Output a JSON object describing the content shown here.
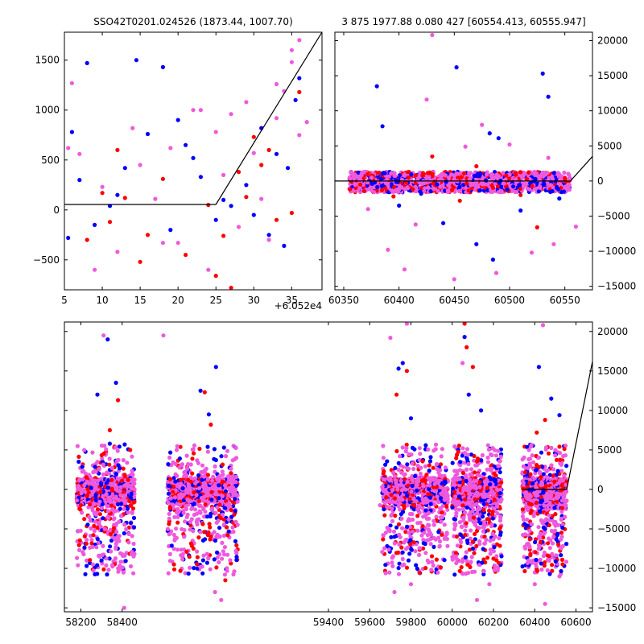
{
  "figure": {
    "title_left": "SSO42T0201.024526 (1873.44, 1007.70)",
    "title_right": "3 875 1977.88 0.080 427 [60554.413, 60555.947]",
    "offset_label": "+6.052e4"
  },
  "colors": {
    "blue": "#0000ff",
    "red": "#ff0000",
    "pink": "#ee5ade",
    "line": "#000000",
    "axes": "#000000"
  },
  "chart_data": [
    {
      "id": "zoom",
      "type": "scatter",
      "xlim": [
        5,
        39
      ],
      "ylim": [
        -800,
        1780
      ],
      "x_offset": 60520,
      "xticks": [
        5,
        10,
        15,
        20,
        25,
        30,
        35
      ],
      "yticks": [
        -500,
        0,
        500,
        1000,
        1500
      ],
      "ytick_labels": [
        "−500",
        "0",
        "500",
        "1000",
        "1500"
      ],
      "series": [
        {
          "color": "blue",
          "points": [
            [
              6,
              780
            ],
            [
              7,
              300
            ],
            [
              9,
              -150
            ],
            [
              11,
              40
            ],
            [
              13,
              420
            ],
            [
              14.5,
              1500
            ],
            [
              16,
              760
            ],
            [
              18,
              1430
            ],
            [
              21,
              650
            ],
            [
              23,
              330
            ],
            [
              25,
              -100
            ],
            [
              27,
              40
            ],
            [
              29,
              250
            ],
            [
              31,
              820
            ],
            [
              33,
              560
            ],
            [
              34,
              -360
            ],
            [
              35.5,
              1100
            ],
            [
              36,
              1320
            ],
            [
              8,
              1470
            ],
            [
              12,
              150
            ],
            [
              19,
              -200
            ],
            [
              22,
              520
            ],
            [
              26,
              100
            ],
            [
              30,
              -50
            ],
            [
              32,
              -250
            ],
            [
              34.5,
              420
            ],
            [
              5.5,
              -280
            ],
            [
              20,
              900
            ]
          ]
        },
        {
          "color": "red",
          "points": [
            [
              8,
              -300
            ],
            [
              10,
              170
            ],
            [
              12,
              600
            ],
            [
              13,
              120
            ],
            [
              16,
              -250
            ],
            [
              18,
              310
            ],
            [
              21,
              -450
            ],
            [
              24,
              50
            ],
            [
              26,
              -260
            ],
            [
              27,
              -780
            ],
            [
              28,
              380
            ],
            [
              30,
              730
            ],
            [
              32,
              600
            ],
            [
              33,
              -100
            ],
            [
              35,
              -30
            ],
            [
              36,
              1180
            ],
            [
              15,
              -520
            ],
            [
              11,
              -120
            ],
            [
              25,
              -660
            ],
            [
              29,
              130
            ],
            [
              31,
              450
            ]
          ]
        },
        {
          "color": "pink",
          "points": [
            [
              6,
              1270
            ],
            [
              7,
              560
            ],
            [
              9,
              -600
            ],
            [
              10,
              230
            ],
            [
              12,
              -420
            ],
            [
              14,
              820
            ],
            [
              15,
              450
            ],
            [
              17,
              110
            ],
            [
              19,
              620
            ],
            [
              20,
              -330
            ],
            [
              22,
              1000
            ],
            [
              24,
              -600
            ],
            [
              25,
              780
            ],
            [
              26,
              350
            ],
            [
              28,
              -170
            ],
            [
              29,
              1080
            ],
            [
              30,
              570
            ],
            [
              31,
              110
            ],
            [
              32,
              -300
            ],
            [
              33,
              920
            ],
            [
              34,
              1190
            ],
            [
              35,
              1480
            ],
            [
              36,
              750
            ],
            [
              37,
              880
            ],
            [
              23,
              1000
            ],
            [
              18,
              -330
            ],
            [
              5.5,
              620
            ],
            [
              27,
              960
            ],
            [
              33,
              1260
            ],
            [
              35,
              1600
            ],
            [
              36,
              1700
            ]
          ]
        }
      ],
      "fit_line": [
        [
          5,
          55
        ],
        [
          25,
          55
        ],
        [
          39,
          1780
        ]
      ]
    },
    {
      "id": "window",
      "type": "scatter",
      "xlim": [
        60342,
        60575
      ],
      "ylim": [
        -15500,
        21200
      ],
      "xticks": [
        60350,
        60400,
        60450,
        60500,
        60550
      ],
      "yticks": [
        -15000,
        -10000,
        -5000,
        0,
        5000,
        10000,
        15000,
        20000
      ],
      "ytick_labels": [
        "−15000",
        "−10000",
        "−5000",
        "0",
        "5000",
        "10000",
        "15000",
        "20000"
      ],
      "band": {
        "x": [
          60355,
          60555
        ],
        "y": [
          -1600,
          1300
        ]
      },
      "series": [
        {
          "color": "blue",
          "points": [
            [
              60380,
              13500
            ],
            [
              60385,
              7800
            ],
            [
              60452,
              16200
            ],
            [
              60482,
              6800
            ],
            [
              60490,
              6100
            ],
            [
              60498,
              -1200
            ],
            [
              60530,
              15300
            ],
            [
              60535,
              12000
            ],
            [
              60400,
              -3500
            ],
            [
              60440,
              -6000
            ],
            [
              60470,
              -9000
            ],
            [
              60510,
              -4200
            ],
            [
              60545,
              -2500
            ],
            [
              60420,
              -1800
            ],
            [
              60485,
              -11200
            ]
          ]
        },
        {
          "color": "red",
          "points": [
            [
              60365,
              -500
            ],
            [
              60430,
              3500
            ],
            [
              60470,
              2100
            ],
            [
              60505,
              1100
            ],
            [
              60510,
              -2000
            ],
            [
              60525,
              -6600
            ],
            [
              60455,
              -2800
            ],
            [
              60415,
              800
            ],
            [
              60550,
              400
            ],
            [
              60395,
              -2200
            ]
          ]
        },
        {
          "color": "pink",
          "points": [
            [
              60430,
              20800
            ],
            [
              60425,
              11600
            ],
            [
              60460,
              4900
            ],
            [
              60475,
              8000
            ],
            [
              60390,
              -9800
            ],
            [
              60405,
              -12600
            ],
            [
              60450,
              -14000
            ],
            [
              60520,
              -10200
            ],
            [
              60540,
              -9000
            ],
            [
              60560,
              -6500
            ],
            [
              60372,
              -4000
            ],
            [
              60500,
              5200
            ],
            [
              60415,
              -6200
            ],
            [
              60488,
              -13100
            ],
            [
              60535,
              3300
            ]
          ]
        }
      ],
      "fit_line": [
        [
          60342,
          0
        ],
        [
          60555,
          0
        ],
        [
          60575,
          3500
        ]
      ]
    },
    {
      "id": "full",
      "type": "scatter",
      "xlim": [
        58120,
        60680
      ],
      "ylim": [
        -15500,
        21200
      ],
      "xticks": [
        58200,
        58400,
        59400,
        59600,
        59800,
        60000,
        60200,
        60400,
        60600
      ],
      "yticks": [
        -15000,
        -10000,
        -5000,
        0,
        5000,
        10000,
        15000,
        20000
      ],
      "ytick_labels": [
        "−15000",
        "−10000",
        "−5000",
        "0",
        "5000",
        "10000",
        "15000",
        "20000"
      ],
      "seasons": [
        [
          58180,
          58460
        ],
        [
          58620,
          58960
        ],
        [
          59660,
          59980
        ],
        [
          60000,
          60240
        ],
        [
          60340,
          60555
        ]
      ],
      "season_tick_labels": [
        "58200",
        "58400",
        "59400",
        "59600",
        "59800",
        "60000",
        "60200",
        "60400",
        "60600"
      ],
      "series": [
        {
          "color": "blue",
          "points": [
            [
              58330,
              19000
            ],
            [
              58370,
              13500
            ],
            [
              58280,
              12000
            ],
            [
              58340,
              5800
            ],
            [
              58855,
              15500
            ],
            [
              58780,
              12500
            ],
            [
              58820,
              9500
            ],
            [
              59760,
              16000
            ],
            [
              59740,
              15300
            ],
            [
              59800,
              9000
            ],
            [
              60060,
              19300
            ],
            [
              60080,
              12000
            ],
            [
              60140,
              10000
            ],
            [
              60420,
              15500
            ],
            [
              60480,
              11500
            ],
            [
              60520,
              9400
            ],
            [
              58300,
              -9000
            ],
            [
              58860,
              -8000
            ],
            [
              59720,
              -6000
            ],
            [
              60100,
              -7500
            ],
            [
              60450,
              -5000
            ]
          ]
        },
        {
          "color": "red",
          "points": [
            [
              58380,
              11300
            ],
            [
              58340,
              7500
            ],
            [
              58800,
              12300
            ],
            [
              58830,
              8200
            ],
            [
              59730,
              12000
            ],
            [
              59780,
              15000
            ],
            [
              60060,
              21000
            ],
            [
              60070,
              18000
            ],
            [
              60100,
              15500
            ],
            [
              60450,
              8800
            ],
            [
              60410,
              7200
            ],
            [
              58200,
              -2000
            ],
            [
              58900,
              -11500
            ],
            [
              59680,
              -1000
            ],
            [
              60230,
              -5000
            ],
            [
              60380,
              -3000
            ]
          ]
        },
        {
          "color": "pink",
          "points": [
            [
              58310,
              19500
            ],
            [
              58290,
              -8500
            ],
            [
              58410,
              -15000
            ],
            [
              58600,
              19500
            ],
            [
              58880,
              -14000
            ],
            [
              58850,
              -13000
            ],
            [
              59700,
              19200
            ],
            [
              59780,
              21000
            ],
            [
              59720,
              -13000
            ],
            [
              59800,
              -12000
            ],
            [
              60050,
              16000
            ],
            [
              60120,
              -14000
            ],
            [
              60180,
              -12000
            ],
            [
              60440,
              20800
            ],
            [
              60450,
              -14500
            ],
            [
              60400,
              -12000
            ],
            [
              60520,
              -11000
            ],
            [
              58240,
              -3500
            ],
            [
              58700,
              -6000
            ],
            [
              59650,
              -2000
            ],
            [
              60020,
              -3000
            ]
          ]
        }
      ],
      "fit_line": [
        [
          60340,
          0
        ],
        [
          60555,
          0
        ],
        [
          60680,
          16200
        ]
      ]
    }
  ]
}
